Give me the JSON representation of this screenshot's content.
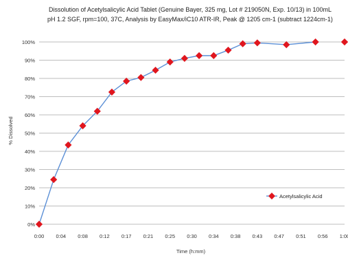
{
  "chart_data": {
    "type": "line",
    "title_lines": [
      "Dissolution of Acetylsalicylic  Acid Tablet (Genuine Bayer, 325 mg, Lot # 219050N, Exp. 10/13) in 100mL",
      "pH 1.2 SGF, rpm=100, 37C, Analysis  by EasyMax/iC10  ATR-IR, Peak @ 1205 cm-1 (subtract 1224cm-1)"
    ],
    "xlabel": "Time (h:mm)",
    "ylabel": "% Dissolved",
    "x_tick_labels": [
      "0:00",
      "0:04",
      "0:08",
      "0:12",
      "0:17",
      "0:21",
      "0:25",
      "0:30",
      "0:34",
      "0:38",
      "0:43",
      "0:47",
      "0:51",
      "0:56",
      "1:00"
    ],
    "y_tick_labels": [
      "0%",
      "10%",
      "20%",
      "30%",
      "40%",
      "50%",
      "60%",
      "70%",
      "80%",
      "90%",
      "100%"
    ],
    "ylim": [
      0,
      100
    ],
    "grid": true,
    "legend_position": "right",
    "series": [
      {
        "name": "Acetylsalicylic Acid",
        "color": "#5b8fd6",
        "marker_color": "#e0161e",
        "x": [
          0,
          2,
          4,
          6,
          8,
          10,
          12,
          14,
          16,
          18,
          20,
          22,
          24,
          26,
          28,
          30,
          34,
          38
        ],
        "y": [
          0,
          24.5,
          43.5,
          54,
          62,
          72.5,
          78.5,
          80.5,
          84.5,
          89,
          91,
          92.5,
          92.5,
          95.5,
          99,
          99.5,
          98.5,
          100
        ]
      }
    ],
    "extra_points": [
      {
        "x": 42,
        "y": 100
      }
    ]
  }
}
